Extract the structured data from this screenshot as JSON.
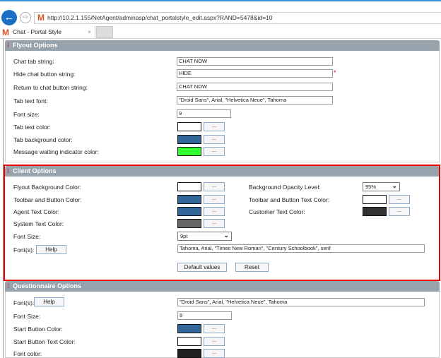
{
  "browser": {
    "url": "http://10.2.1.155/NetAgent/adminasp/chat_portalstyle_edit.aspx?RAND=5478&id=10",
    "tab_title": "Chat - Portal Style",
    "logo": "M",
    "close_glyph": "×",
    "back_glyph": "←",
    "forward_glyph": "⇨"
  },
  "flyout": {
    "title": "Flyout Options",
    "chat_tab_label": "Chat tab string:",
    "chat_tab_value": "CHAT NOW",
    "hide_label": "Hide chat button string:",
    "hide_value": "HIDE",
    "required_mark": "*",
    "return_label": "Return to chat button string:",
    "return_value": "CHAT NOW",
    "tab_font_label": "Tab text font:",
    "tab_font_value": "\"Droid Sans\", Arial, \"Helvetica Neue\", Tahoma",
    "font_size_label": "Font size:",
    "font_size_value": "9",
    "tab_text_color_label": "Tab text color:",
    "tab_text_color": "#ffffff",
    "tab_bg_label": "Tab background color:",
    "tab_bg_color": "#336699",
    "msg_wait_label": "Message waiting indicator color:",
    "msg_wait_color": "#33ff33"
  },
  "client": {
    "title": "Client Options",
    "flyout_bg_label": "Flyout Background Color:",
    "flyout_bg_color": "#ffffff",
    "toolbar_label": "Toolbar and Button Color:",
    "toolbar_color": "#336699",
    "agent_text_label": "Agent Text Color:",
    "agent_text_color": "#336699",
    "system_text_label": "System Text Color:",
    "system_text_color": "#666666",
    "font_size_label": "Font Size:",
    "font_size_value": "9pt",
    "fonts_label": "Font(s):",
    "help_label": "Help",
    "fonts_value": "Tahoma, Arial, \"Times New Roman\", \"Century Schoolbook\", serif",
    "opacity_label": "Background Opacity Level:",
    "opacity_value": "95%",
    "toolbar_text_label": "Toolbar and Button Text Color:",
    "toolbar_text_color": "#ffffff",
    "customer_text_label": "Customer Text Color:",
    "customer_text_color": "#333333",
    "default_label": "Default values",
    "reset_label": "Reset"
  },
  "questionnaire": {
    "title": "Questionnaire Options",
    "fonts_label": "Font(s):",
    "help_label": "Help",
    "fonts_value": "\"Droid Sans\", Arial, \"Helvetica Neue\", Tahoma",
    "font_size_label": "Font Size:",
    "font_size_value": "9",
    "start_btn_label": "Start Button Color:",
    "start_btn_color": "#336699",
    "start_btn_text_label": "Start Button Text Color:",
    "start_btn_text_color": "#ffffff",
    "font_color_label": "Font color:",
    "font_color": "#222222"
  },
  "picker_label": "..."
}
